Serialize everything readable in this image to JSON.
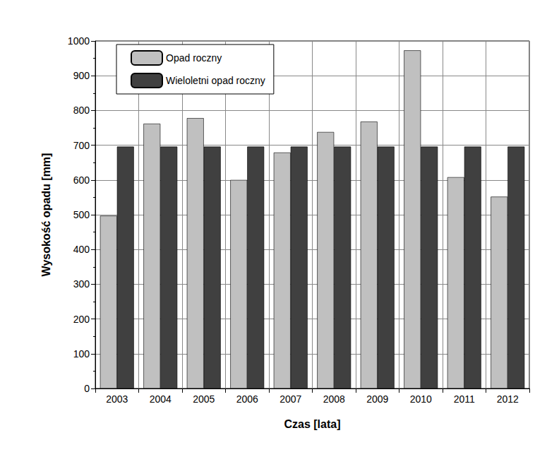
{
  "chart_data": {
    "type": "bar",
    "x_label": "Czas [lata]",
    "y_label": "Wysokość opadu [mm]",
    "categories": [
      "2003",
      "2004",
      "2005",
      "2006",
      "2007",
      "2008",
      "2009",
      "2010",
      "2011",
      "2012"
    ],
    "series": [
      {
        "name": "Opad roczny",
        "color": "#c0c0c0",
        "values": [
          497,
          762,
          778,
          600,
          679,
          738,
          768,
          973,
          608,
          552
        ]
      },
      {
        "name": "Wieloletni opad roczny",
        "color": "#404040",
        "values": [
          696,
          696,
          696,
          696,
          696,
          696,
          696,
          696,
          696,
          696
        ]
      }
    ],
    "ylim": [
      0,
      1000
    ],
    "yticks": [
      0,
      100,
      200,
      300,
      400,
      500,
      600,
      700,
      800,
      900,
      1000
    ],
    "grid": true,
    "legend": "top-left"
  }
}
